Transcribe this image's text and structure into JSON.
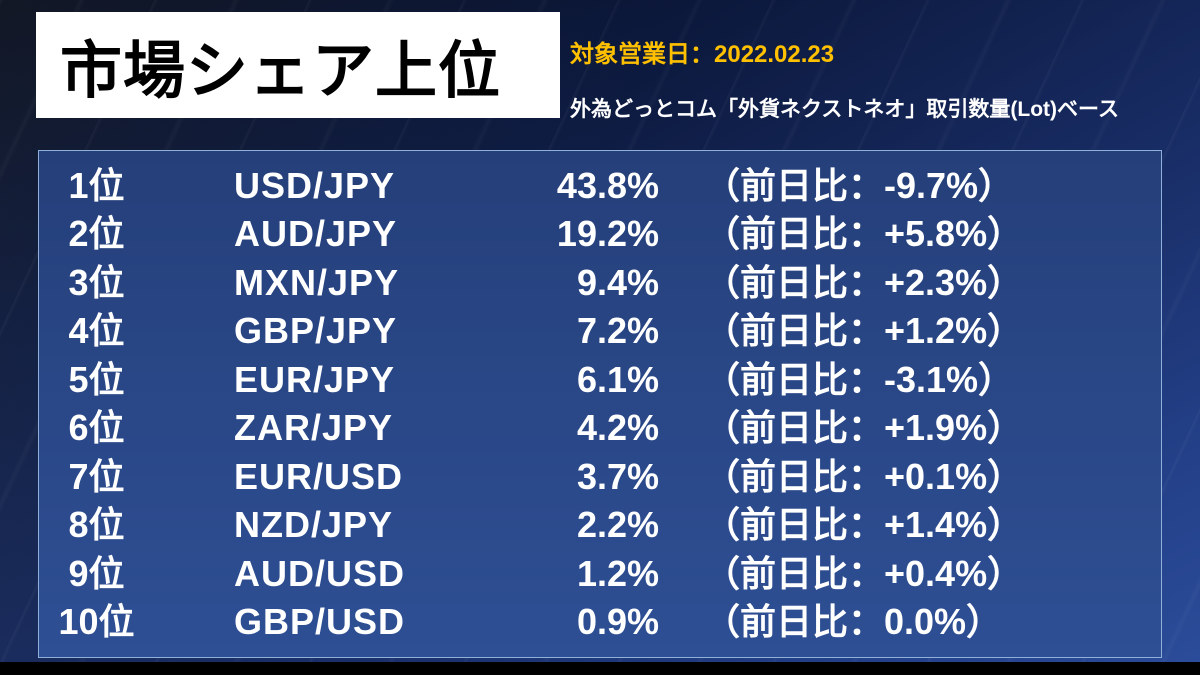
{
  "header": {
    "title": "市場シェア上位",
    "date_label": "対象営業日：2022.02.23",
    "subtitle": "外為どっとコム「外貨ネクストネオ」取引数量(Lot)ベース"
  },
  "colors": {
    "background_navy": "#16295e",
    "panel_blue": "#2e4f94",
    "panel_border": "#8fb0d8",
    "date_yellow": "#ffc000",
    "title_text": "#000000",
    "row_text": "#ffffff"
  },
  "chart_data": {
    "type": "table",
    "title": "市場シェア上位",
    "date": "2022.02.23",
    "rows": [
      {
        "rank": "1位",
        "pair": "USD/JPY",
        "share": "43.8%",
        "share_pct": 43.8,
        "change": "（前日比：-9.7%）",
        "change_pct": -9.7
      },
      {
        "rank": "2位",
        "pair": "AUD/JPY",
        "share": "19.2%",
        "share_pct": 19.2,
        "change": "（前日比：+5.8%）",
        "change_pct": 5.8
      },
      {
        "rank": "3位",
        "pair": "MXN/JPY",
        "share": "9.4%",
        "share_pct": 9.4,
        "change": "（前日比：+2.3%）",
        "change_pct": 2.3
      },
      {
        "rank": "4位",
        "pair": "GBP/JPY",
        "share": "7.2%",
        "share_pct": 7.2,
        "change": "（前日比：+1.2%）",
        "change_pct": 1.2
      },
      {
        "rank": "5位",
        "pair": "EUR/JPY",
        "share": "6.1%",
        "share_pct": 6.1,
        "change": "（前日比：-3.1%）",
        "change_pct": -3.1
      },
      {
        "rank": "6位",
        "pair": "ZAR/JPY",
        "share": "4.2%",
        "share_pct": 4.2,
        "change": "（前日比：+1.9%）",
        "change_pct": 1.9
      },
      {
        "rank": "7位",
        "pair": "EUR/USD",
        "share": "3.7%",
        "share_pct": 3.7,
        "change": "（前日比：+0.1%）",
        "change_pct": 0.1
      },
      {
        "rank": "8位",
        "pair": "NZD/JPY",
        "share": "2.2%",
        "share_pct": 2.2,
        "change": "（前日比：+1.4%）",
        "change_pct": 1.4
      },
      {
        "rank": "9位",
        "pair": "AUD/USD",
        "share": "1.2%",
        "share_pct": 1.2,
        "change": "（前日比：+0.4%）",
        "change_pct": 0.4
      },
      {
        "rank": "10位",
        "pair": "GBP/USD",
        "share": "0.9%",
        "share_pct": 0.9,
        "change": "（前日比：0.0%）",
        "change_pct": 0.0
      }
    ]
  }
}
